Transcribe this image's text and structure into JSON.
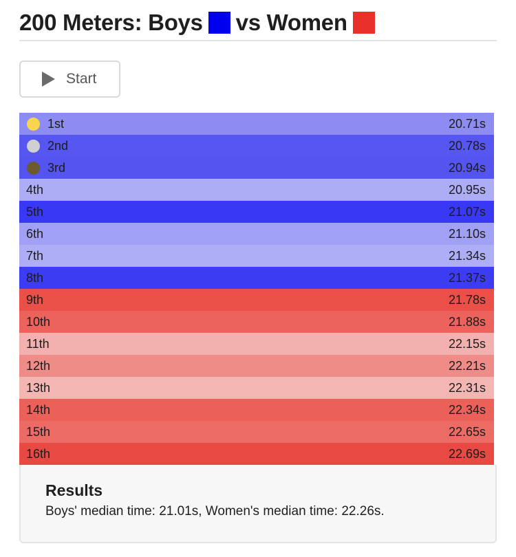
{
  "header": {
    "title_part1": "200 Meters: Boys",
    "title_part2": "vs Women",
    "boys_color": "#0000ee",
    "women_color": "#e8312a"
  },
  "controls": {
    "start_label": "Start",
    "start_icon": "play-icon"
  },
  "rows": [
    {
      "place": "1st",
      "time": "20.71s",
      "group": "boys",
      "bg": "#8c8cf2",
      "medal": "gold",
      "medal_color": "#f7d64d"
    },
    {
      "place": "2nd",
      "time": "20.78s",
      "group": "boys",
      "bg": "#5656f0",
      "medal": "silver",
      "medal_color": "#d0d0d0"
    },
    {
      "place": "3rd",
      "time": "20.94s",
      "group": "boys",
      "bg": "#5454ef",
      "medal": "bronze",
      "medal_color": "#6b5a2e"
    },
    {
      "place": "4th",
      "time": "20.95s",
      "group": "boys",
      "bg": "#adadf6"
    },
    {
      "place": "5th",
      "time": "21.07s",
      "group": "boys",
      "bg": "#3939f5"
    },
    {
      "place": "6th",
      "time": "21.10s",
      "group": "boys",
      "bg": "#a0a0f5"
    },
    {
      "place": "7th",
      "time": "21.34s",
      "group": "boys",
      "bg": "#aeaef6"
    },
    {
      "place": "8th",
      "time": "21.37s",
      "group": "boys",
      "bg": "#3c3cf3"
    },
    {
      "place": "9th",
      "time": "21.78s",
      "group": "women",
      "bg": "#ea4f48"
    },
    {
      "place": "10th",
      "time": "21.88s",
      "group": "women",
      "bg": "#eb635c"
    },
    {
      "place": "11th",
      "time": "22.15s",
      "group": "women",
      "bg": "#f2b1ae"
    },
    {
      "place": "12th",
      "time": "22.21s",
      "group": "women",
      "bg": "#ef8c87"
    },
    {
      "place": "13th",
      "time": "22.31s",
      "group": "women",
      "bg": "#f3b6b3"
    },
    {
      "place": "14th",
      "time": "22.34s",
      "group": "women",
      "bg": "#eb615a"
    },
    {
      "place": "15th",
      "time": "22.65s",
      "group": "women",
      "bg": "#ec6c65"
    },
    {
      "place": "16th",
      "time": "22.69s",
      "group": "women",
      "bg": "#e84a43"
    }
  ],
  "results": {
    "heading": "Results",
    "summary": "Boys' median time: 21.01s, Women's median time: 22.26s."
  }
}
